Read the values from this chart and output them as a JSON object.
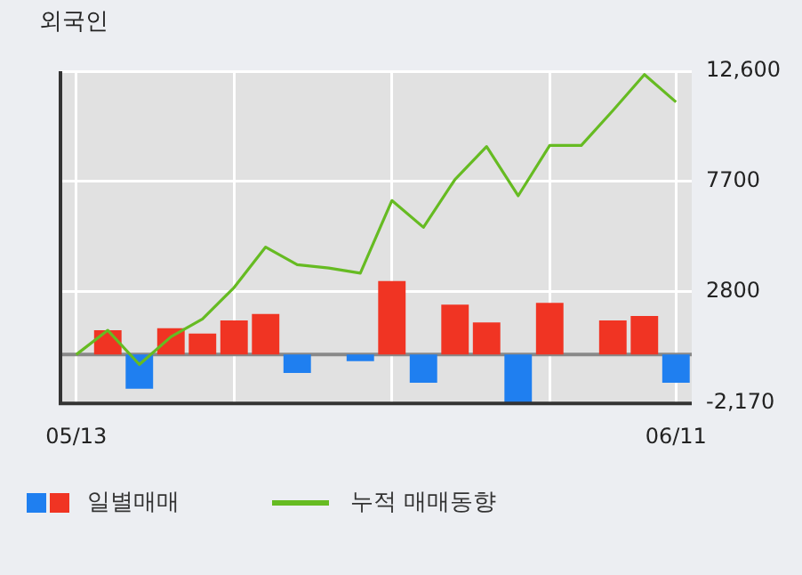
{
  "chart_data": {
    "type": "bar",
    "title": "외국인",
    "categories": [
      "05/13",
      null,
      null,
      null,
      null,
      null,
      null,
      null,
      null,
      null,
      null,
      null,
      null,
      null,
      null,
      null,
      null,
      null,
      null,
      "06/11"
    ],
    "series": [
      {
        "name": "일별매매",
        "values": [
          0,
          1080,
          -1520,
          1170,
          930,
          1520,
          1810,
          -820,
          0,
          -290,
          3270,
          -1250,
          2220,
          1430,
          -2130,
          2300,
          0,
          1520,
          1720,
          -1250
        ],
        "colors": [
          "#f03423",
          "#f03423",
          "#1f7ff0",
          "#f03423",
          "#f03423",
          "#f03423",
          "#f03423",
          "#1f7ff0",
          "#f03423",
          "#1f7ff0",
          "#f03423",
          "#1f7ff0",
          "#f03423",
          "#f03423",
          "#1f7ff0",
          "#f03423",
          "#f03423",
          "#f03423",
          "#f03423",
          "#1f7ff0"
        ]
      },
      {
        "name": "누적 매매동향",
        "type": "line",
        "color": "#66bb22",
        "values": [
          0,
          1080,
          -440,
          790,
          1580,
          2980,
          4780,
          4000,
          3850,
          3620,
          6850,
          5660,
          7790,
          9250,
          7060,
          9300,
          9300,
          10850,
          12450,
          11230
        ]
      }
    ],
    "ylim": [
      -2170,
      12600
    ],
    "yticks": [
      {
        "value": -2170,
        "label": "-2,170"
      },
      2800,
      7700,
      {
        "value": 12600,
        "label": "12,600"
      }
    ],
    "grid": true,
    "legend": "bottom",
    "marker": "none"
  }
}
